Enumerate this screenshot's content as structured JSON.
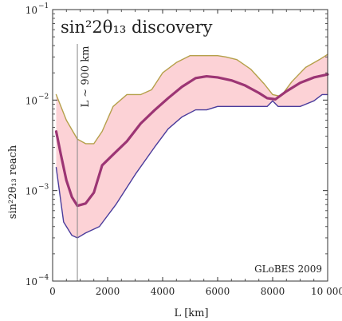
{
  "chart_data": {
    "type": "line",
    "title": "sin²2θ₁₃ discovery",
    "xlabel": "L [km]",
    "ylabel": "sin²2θ₁₃ reach",
    "xlim": [
      0,
      10000
    ],
    "ylim": [
      0.0001,
      0.1
    ],
    "yscale": "log",
    "x_ticks": [
      0,
      2000,
      4000,
      6000,
      8000,
      10000
    ],
    "x_tick_labels": [
      "0",
      "2000",
      "4000",
      "6000",
      "8000",
      "10 000"
    ],
    "y_ticks": [
      0.0001,
      0.001,
      0.01,
      0.1
    ],
    "y_tick_labels": [
      [
        "10",
        "−4"
      ],
      [
        "10",
        "−3"
      ],
      [
        "10",
        "−2"
      ],
      [
        "10",
        "−1"
      ]
    ],
    "vline": {
      "x": 900,
      "label": "L ~ 900 km"
    },
    "annotation": "GLoBES 2009",
    "series": [
      {
        "color": "#b5a04a",
        "x": [
          130,
          500,
          900,
          1200,
          1500,
          1800,
          2200,
          2700,
          3200,
          3600,
          4000,
          4500,
          5000,
          5500,
          6000,
          6300,
          6700,
          7200,
          7700,
          8000,
          8300,
          8700,
          9200,
          9700,
          10000
        ],
        "y": [
          0.0115,
          0.006,
          0.0037,
          0.0033,
          0.0033,
          0.0045,
          0.0085,
          0.0115,
          0.0115,
          0.013,
          0.02,
          0.026,
          0.031,
          0.031,
          0.031,
          0.03,
          0.028,
          0.022,
          0.015,
          0.0115,
          0.011,
          0.016,
          0.023,
          0.028,
          0.032
        ]
      },
      {
        "color": "#9c3574",
        "x": [
          130,
          300,
          500,
          700,
          900,
          1200,
          1500,
          1800,
          2200,
          2700,
          3200,
          3700,
          4200,
          4700,
          5200,
          5600,
          6000,
          6500,
          7000,
          7500,
          7800,
          8100,
          8500,
          9000,
          9500,
          10000
        ],
        "y": [
          0.0045,
          0.0025,
          0.0013,
          0.00085,
          0.00068,
          0.00072,
          0.00095,
          0.0019,
          0.0025,
          0.0035,
          0.0055,
          0.0077,
          0.0105,
          0.014,
          0.0175,
          0.0183,
          0.0178,
          0.0165,
          0.0145,
          0.012,
          0.0105,
          0.0102,
          0.0125,
          0.0155,
          0.0178,
          0.0192
        ]
      },
      {
        "color": "#4a3c9c",
        "x": [
          130,
          400,
          700,
          900,
          1200,
          1700,
          2300,
          3000,
          3700,
          4200,
          4700,
          5200,
          5600,
          6000,
          6500,
          7000,
          7500,
          7800,
          8000,
          8200,
          8600,
          9000,
          9500,
          9800,
          10000
        ],
        "y": [
          0.0018,
          0.00045,
          0.00032,
          0.0003,
          0.00034,
          0.0004,
          0.0007,
          0.0015,
          0.003,
          0.0048,
          0.0065,
          0.0078,
          0.0078,
          0.0085,
          0.0085,
          0.0085,
          0.0085,
          0.0085,
          0.0098,
          0.0085,
          0.0085,
          0.0085,
          0.0098,
          0.0115,
          0.0115
        ]
      }
    ],
    "band": {
      "fill": "#fcd2d6",
      "between": [
        0,
        2
      ]
    }
  }
}
